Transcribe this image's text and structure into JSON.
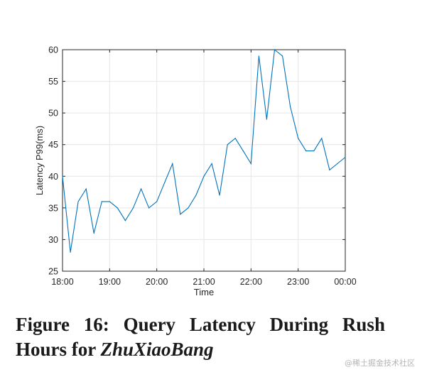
{
  "chart_data": {
    "type": "line",
    "title": "",
    "xlabel": "Time",
    "ylabel": "Latency P99(ms)",
    "xlim": [
      0,
      6
    ],
    "ylim": [
      25,
      60
    ],
    "x_ticks": [
      "18:00",
      "19:00",
      "20:00",
      "21:00",
      "22:00",
      "23:00",
      "00:00"
    ],
    "y_ticks": [
      25,
      30,
      35,
      40,
      45,
      50,
      55,
      60
    ],
    "grid": true,
    "legend": "none",
    "series": [
      {
        "color": "#0072BD",
        "x": [
          0,
          0.167,
          0.333,
          0.5,
          0.667,
          0.833,
          1.0,
          1.167,
          1.333,
          1.5,
          1.667,
          1.833,
          2.0,
          2.167,
          2.333,
          2.5,
          2.667,
          2.833,
          3.0,
          3.167,
          3.333,
          3.5,
          3.667,
          3.833,
          4.0,
          4.167,
          4.333,
          4.5,
          4.667,
          4.833,
          5.0,
          5.167,
          5.333,
          5.5,
          5.667,
          5.833,
          6.0
        ],
        "y": [
          40,
          28,
          36,
          38,
          31,
          36,
          36,
          35,
          33,
          35,
          38,
          35,
          36,
          39,
          42,
          34,
          35,
          37,
          40,
          42,
          37,
          45,
          46,
          44,
          42,
          59,
          49,
          60,
          59,
          51,
          46,
          44,
          44,
          46,
          41,
          42,
          43
        ]
      }
    ]
  },
  "caption": {
    "line1": [
      "Figure",
      "16:",
      "Query",
      "Latency",
      "During",
      "Rush"
    ],
    "line2_prefix": "Hours for ",
    "line2_emph": "ZhuXiaoBang"
  },
  "watermark": "@稀土掘金技术社区"
}
